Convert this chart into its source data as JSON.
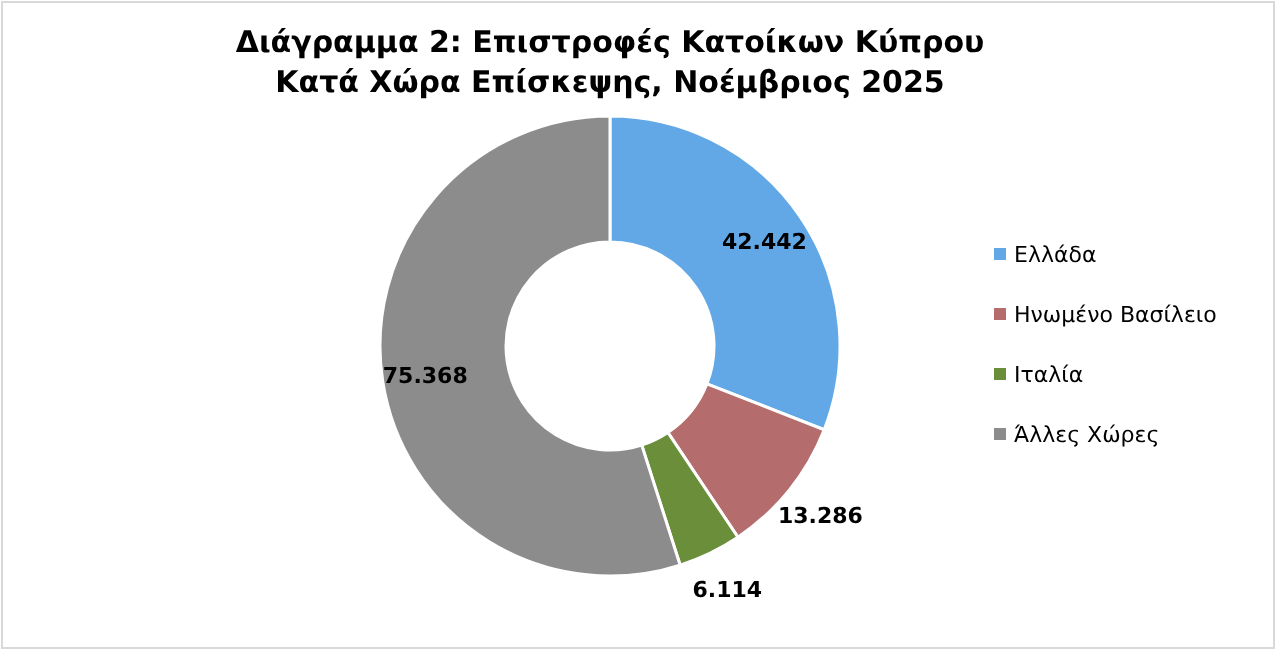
{
  "chart_data": {
    "type": "donut",
    "title": "Διάγραμμα 2: Επιστροφές Κατοίκων Κύπρου\nΚατά Χώρα Επίσκεψης, Νοέμβριος 2025",
    "categories": [
      "Ελλάδα",
      "Ηνωμένο Βασίλειο",
      "Ιταλία",
      "Άλλες Χώρες"
    ],
    "values": [
      42442,
      13286,
      6114,
      75368
    ],
    "value_labels": [
      "42.442",
      "13.286",
      "6.114",
      "75.368"
    ],
    "colors": [
      "#62a8e6",
      "#b56c6c",
      "#6b8e3a",
      "#8c8c8c"
    ],
    "legend": "right"
  }
}
